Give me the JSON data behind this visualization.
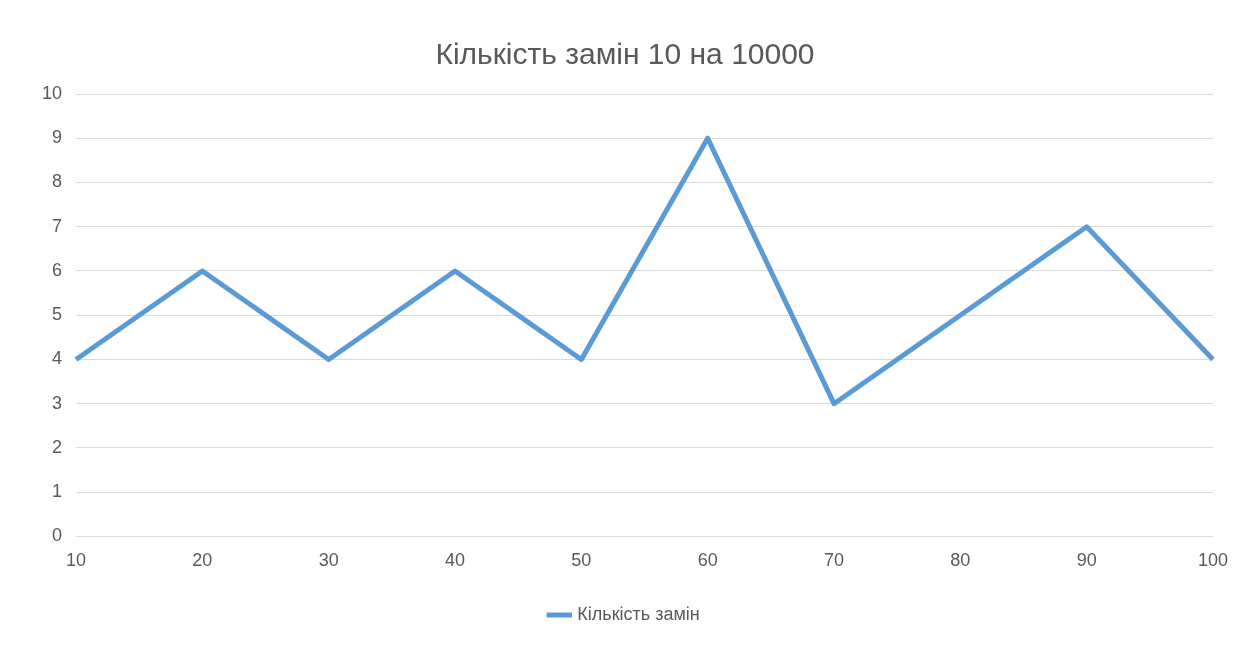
{
  "chart_data": {
    "type": "line",
    "title": "Кількість замін 10 на 10000",
    "categories": [
      "10",
      "20",
      "30",
      "40",
      "50",
      "60",
      "70",
      "80",
      "90",
      "100"
    ],
    "series": [
      {
        "name": "Кількість замін",
        "color": "#5b9bd5",
        "values": [
          4,
          6,
          4,
          6,
          4,
          9,
          3,
          5,
          7,
          4
        ]
      }
    ],
    "ylim": [
      0,
      10
    ],
    "yticks": [
      0,
      1,
      2,
      3,
      4,
      5,
      6,
      7,
      8,
      9,
      10
    ],
    "grid": "y",
    "legend": "bottom"
  }
}
